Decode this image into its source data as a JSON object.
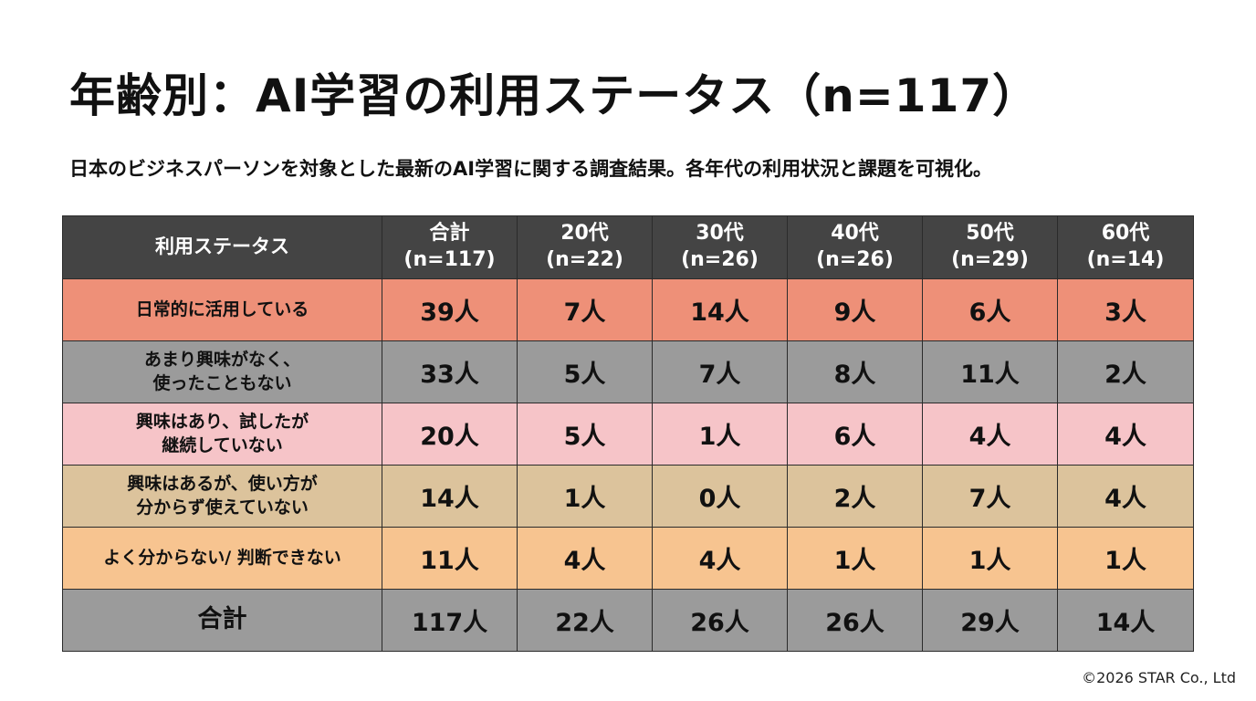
{
  "title": "年齢別：AI学習の利用ステータス（n=117）",
  "subtitle": "日本のビジネスパーソンを対象とした最新のAI学習に関する調査結果。各年代の利用状況と課題を可視化。",
  "copyright": "©2026 STAR Co., Ltd",
  "colors": {
    "header_bg": "#444444",
    "row_daily": "#ee9078",
    "row_no_interest": "#9b9b9b",
    "row_tried": "#f6c4c8",
    "row_unclear": "#dcc39c",
    "row_unknown": "#f7c490",
    "row_total": "#9b9b9b"
  },
  "chart_data": {
    "type": "table",
    "columns": [
      {
        "label": "利用ステータス",
        "n": ""
      },
      {
        "label": "合計",
        "n": "(n=117)"
      },
      {
        "label": "20代",
        "n": "(n=22)"
      },
      {
        "label": "30代",
        "n": "(n=26)"
      },
      {
        "label": "40代",
        "n": "(n=26)"
      },
      {
        "label": "50代",
        "n": "(n=29)"
      },
      {
        "label": "60代",
        "n": "(n=14)"
      }
    ],
    "rows": [
      {
        "status": [
          "日常的に活用している"
        ],
        "color": "#ee9078",
        "values": [
          "39人",
          "7人",
          "14人",
          "9人",
          "6人",
          "3人"
        ]
      },
      {
        "status": [
          "あまり興味がなく、",
          "使ったこともない"
        ],
        "color": "#9b9b9b",
        "values": [
          "33人",
          "5人",
          "7人",
          "8人",
          "11人",
          "2人"
        ]
      },
      {
        "status": [
          "興味はあり、試したが",
          "継続していない"
        ],
        "color": "#f6c4c8",
        "values": [
          "20人",
          "5人",
          "1人",
          "6人",
          "4人",
          "4人"
        ]
      },
      {
        "status": [
          "興味はあるが、使い方が",
          "分からず使えていない"
        ],
        "color": "#dcc39c",
        "values": [
          "14人",
          "1人",
          "0人",
          "2人",
          "7人",
          "4人"
        ]
      },
      {
        "status": [
          "よく分からない/ 判断できない"
        ],
        "color": "#f7c490",
        "values": [
          "11人",
          "4人",
          "4人",
          "1人",
          "1人",
          "1人"
        ]
      }
    ],
    "total_row": {
      "status": [
        "合計"
      ],
      "color": "#9b9b9b",
      "values": [
        "117人",
        "22人",
        "26人",
        "26人",
        "29人",
        "14人"
      ]
    }
  }
}
